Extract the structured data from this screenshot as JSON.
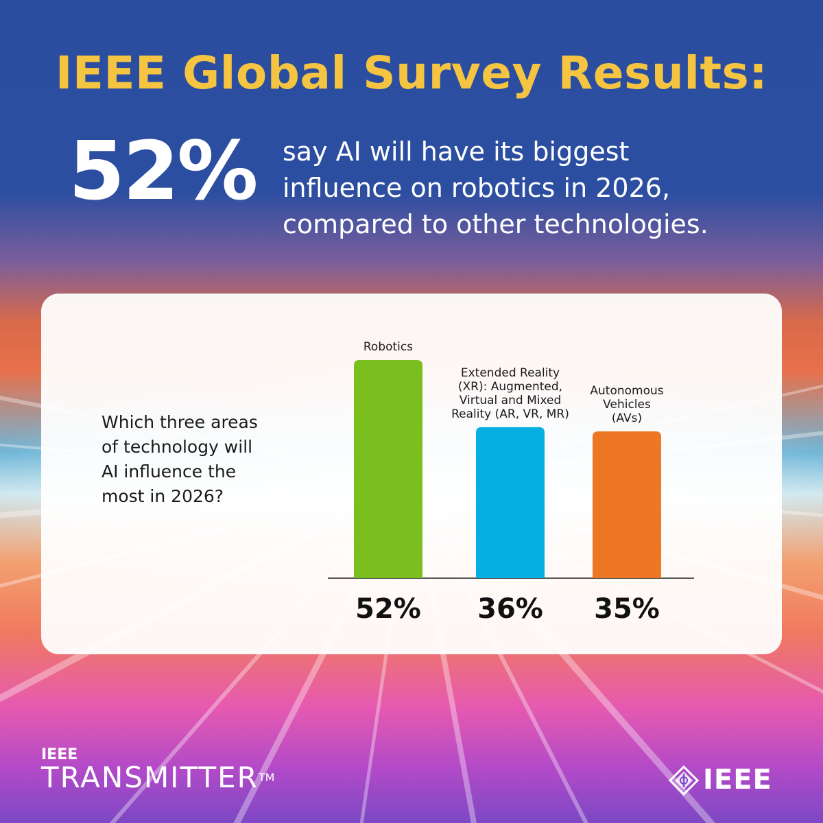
{
  "header": {
    "title": "IEEE Global Survey Results:",
    "stat_value": "52%",
    "stat_lines": [
      "say AI will have its biggest",
      "influence on robotics in 2026,",
      "compared to other technologies."
    ]
  },
  "question_lines": [
    "Which three areas",
    "of technology will",
    "AI influence the",
    "most in 2026?"
  ],
  "chart_data": {
    "type": "bar",
    "categories": [
      "Robotics",
      "Extended Reality (XR): Augmented, Virtual and Mixed Reality (AR, VR, MR)",
      "Autonomous Vehicles (AVs)"
    ],
    "category_label_lines": [
      [
        "Robotics"
      ],
      [
        "Extended Reality",
        "(XR): Augmented,",
        "Virtual and Mixed",
        "Reality (AR, VR, MR)"
      ],
      [
        "Autonomous",
        "Vehicles",
        "(AVs)"
      ]
    ],
    "values": [
      52,
      36,
      35
    ],
    "value_labels": [
      "52%",
      "36%",
      "35%"
    ],
    "colors": [
      "#7bbf1e",
      "#05aee3",
      "#ed7724"
    ],
    "ylim": [
      0,
      52
    ]
  },
  "branding": {
    "left_small": "IEEE",
    "left_big": "TRANSMITTER",
    "left_tm": "TM",
    "right_logo_text": "IEEE"
  }
}
